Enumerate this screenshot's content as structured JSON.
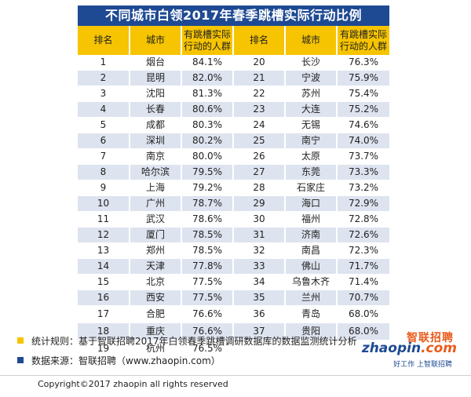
{
  "title": "不同城市白领2017年春季跳槽实际行动比例",
  "headers": {
    "rank": "排名",
    "city": "城市",
    "ratio_line1": "有跳槽实际",
    "ratio_line2": "行动的人群"
  },
  "left_rows": [
    {
      "rank": "1",
      "city": "烟台",
      "ratio": "84.1%"
    },
    {
      "rank": "2",
      "city": "昆明",
      "ratio": "82.0%"
    },
    {
      "rank": "3",
      "city": "沈阳",
      "ratio": "81.3%"
    },
    {
      "rank": "4",
      "city": "长春",
      "ratio": "80.6%"
    },
    {
      "rank": "5",
      "city": "成都",
      "ratio": "80.3%"
    },
    {
      "rank": "6",
      "city": "深圳",
      "ratio": "80.2%"
    },
    {
      "rank": "7",
      "city": "南京",
      "ratio": "80.0%"
    },
    {
      "rank": "8",
      "city": "哈尔滨",
      "ratio": "79.5%"
    },
    {
      "rank": "9",
      "city": "上海",
      "ratio": "79.2%"
    },
    {
      "rank": "10",
      "city": "广州",
      "ratio": "78.7%"
    },
    {
      "rank": "11",
      "city": "武汉",
      "ratio": "78.6%"
    },
    {
      "rank": "12",
      "city": "厦门",
      "ratio": "78.5%"
    },
    {
      "rank": "13",
      "city": "郑州",
      "ratio": "78.5%"
    },
    {
      "rank": "14",
      "city": "天津",
      "ratio": "77.8%"
    },
    {
      "rank": "15",
      "city": "北京",
      "ratio": "77.5%"
    },
    {
      "rank": "16",
      "city": "西安",
      "ratio": "77.5%"
    },
    {
      "rank": "17",
      "city": "合肥",
      "ratio": "76.6%"
    },
    {
      "rank": "18",
      "city": "重庆",
      "ratio": "76.6%"
    },
    {
      "rank": "19",
      "city": "杭州",
      "ratio": "76.5%"
    }
  ],
  "right_rows": [
    {
      "rank": "20",
      "city": "长沙",
      "ratio": "76.3%"
    },
    {
      "rank": "21",
      "city": "宁波",
      "ratio": "75.9%"
    },
    {
      "rank": "22",
      "city": "苏州",
      "ratio": "75.4%"
    },
    {
      "rank": "23",
      "city": "大连",
      "ratio": "75.2%"
    },
    {
      "rank": "24",
      "city": "无锡",
      "ratio": "74.6%"
    },
    {
      "rank": "25",
      "city": "南宁",
      "ratio": "74.0%"
    },
    {
      "rank": "26",
      "city": "太原",
      "ratio": "73.7%"
    },
    {
      "rank": "27",
      "city": "东莞",
      "ratio": "73.3%"
    },
    {
      "rank": "28",
      "city": "石家庄",
      "ratio": "73.2%"
    },
    {
      "rank": "29",
      "city": "海口",
      "ratio": "72.9%"
    },
    {
      "rank": "30",
      "city": "福州",
      "ratio": "72.8%"
    },
    {
      "rank": "31",
      "city": "济南",
      "ratio": "72.6%"
    },
    {
      "rank": "32",
      "city": "南昌",
      "ratio": "72.3%"
    },
    {
      "rank": "33",
      "city": "佛山",
      "ratio": "71.7%"
    },
    {
      "rank": "34",
      "city": "乌鲁木齐",
      "ratio": "71.4%"
    },
    {
      "rank": "35",
      "city": "兰州",
      "ratio": "70.7%"
    },
    {
      "rank": "36",
      "city": "青岛",
      "ratio": "68.0%"
    },
    {
      "rank": "37",
      "city": "贵阳",
      "ratio": "68.0%"
    }
  ],
  "notes": {
    "rule": "统计规则：基于智联招聘2017年白领春季跳槽调研数据库的数据监测统计分析",
    "source": "数据来源：智联招聘（www.zhaopin.com）"
  },
  "logo": {
    "cn": "智联招聘",
    "en_main": "zhaopin",
    "en_dot": ".com",
    "slogan": "好工作  上智联招聘"
  },
  "copyright": "Copyright©2017 zhaopin all rights reserved",
  "colors": {
    "title_bg": "#1e4a93",
    "header_bg": "#f6c400",
    "stripe": "#dde3ef",
    "note_yellow": "#f6c400",
    "note_blue": "#1e4a93"
  }
}
